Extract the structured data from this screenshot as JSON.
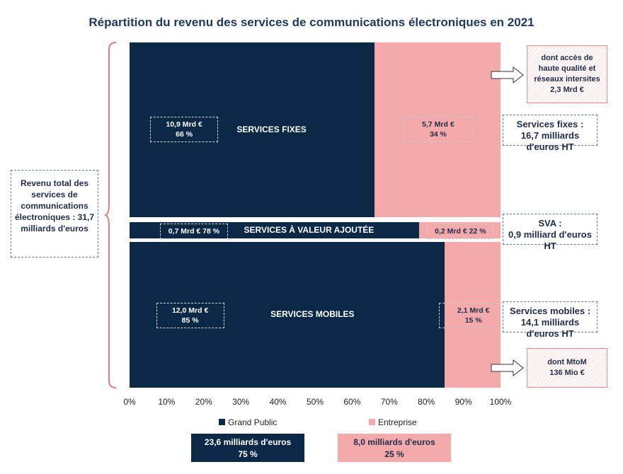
{
  "chart_data": {
    "type": "bar",
    "stacked": true,
    "orientation": "horizontal",
    "percent": true,
    "title": "Répartition du revenu des services de communications électroniques en 2021",
    "xlim": [
      0,
      100
    ],
    "x_ticks": [
      "0%",
      "10%",
      "20%",
      "30%",
      "40%",
      "50%",
      "60%",
      "70%",
      "80%",
      "90%",
      "100%"
    ],
    "categories": [
      "SERVICES FIXES",
      "SERVICES À VALEUR AJOUTÉE",
      "SERVICES MOBILES"
    ],
    "series": [
      {
        "name": "Grand Public",
        "color": "#0b2847",
        "values": [
          66,
          78,
          85
        ],
        "labels": [
          "10,9 Mrd €\n66 %",
          "0,7 Mrd € 78 %",
          "12,0 Mrd €\n85 %"
        ]
      },
      {
        "name": "Entreprise",
        "color": "#f4aaaa",
        "values": [
          34,
          22,
          15
        ],
        "labels": [
          "5,7 Mrd €\n34 %",
          "0,2 Mrd € 22 %",
          "2,1 Mrd €\n15 %"
        ]
      }
    ],
    "legend": "bottom",
    "totals": [
      {
        "line1": "23,6 milliards d'euros",
        "line2": "75 %"
      },
      {
        "line1": "8,0 milliards d'euros",
        "line2": "25 %"
      }
    ],
    "annotations": {
      "total": "Revenu total des services de communications électroniques : 31,7 milliards d'euros",
      "fixes": [
        "Services fixes :",
        "16,7 milliards d'euros HT"
      ],
      "sva": [
        "SVA :",
        "0,9 milliard d'euros HT"
      ],
      "mobiles": [
        "Services mobiles :",
        "14,1 milliards d'euros HT"
      ],
      "fixes_detail": [
        "dont accès de",
        "haute qualité et",
        "réseaux intersites",
        "2,3 Mrd €"
      ],
      "mobiles_detail": [
        "dont MtoM",
        "136 Mio €"
      ]
    }
  }
}
